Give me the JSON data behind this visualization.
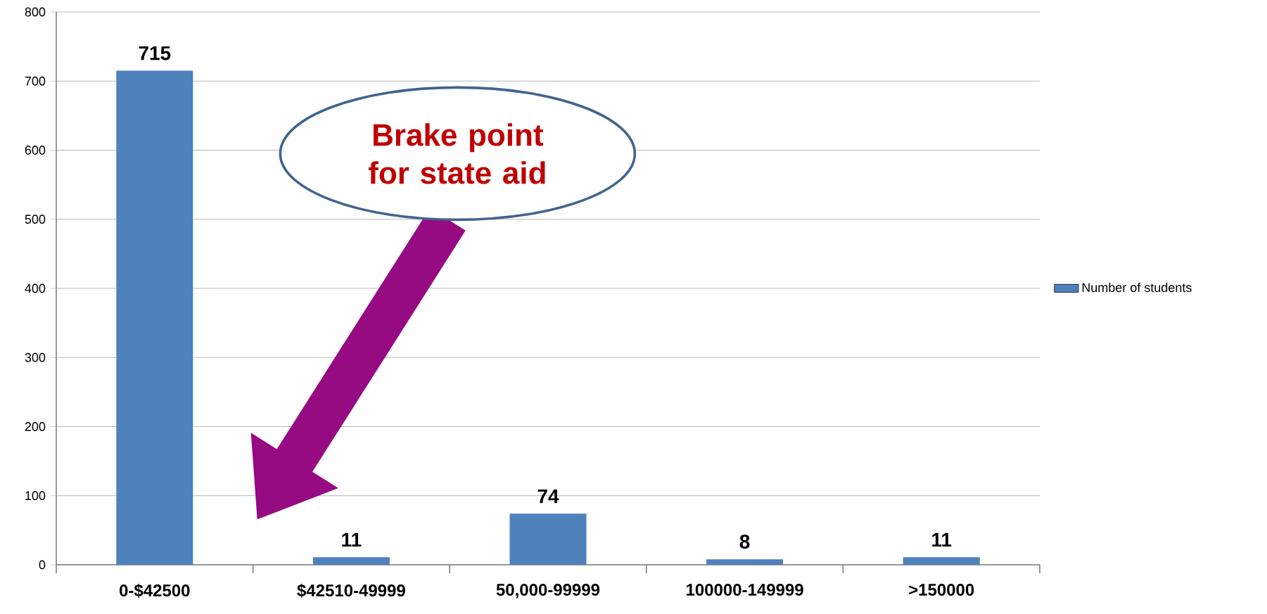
{
  "chart_data": {
    "type": "bar",
    "categories": [
      "0-$42500",
      "$42510-49999",
      "50,000-99999",
      "100000-149999",
      ">150000"
    ],
    "series": [
      {
        "name": "Number of students",
        "color": "#4f81bd",
        "values": [
          715,
          11,
          74,
          8,
          11
        ]
      }
    ],
    "ylim": [
      0,
      800
    ],
    "yticks": [
      0,
      100,
      200,
      300,
      400,
      500,
      600,
      700,
      800
    ],
    "grid": "y",
    "legend": "right",
    "data_labels": true,
    "annotations": [
      "Brake point for state aid"
    ]
  }
}
